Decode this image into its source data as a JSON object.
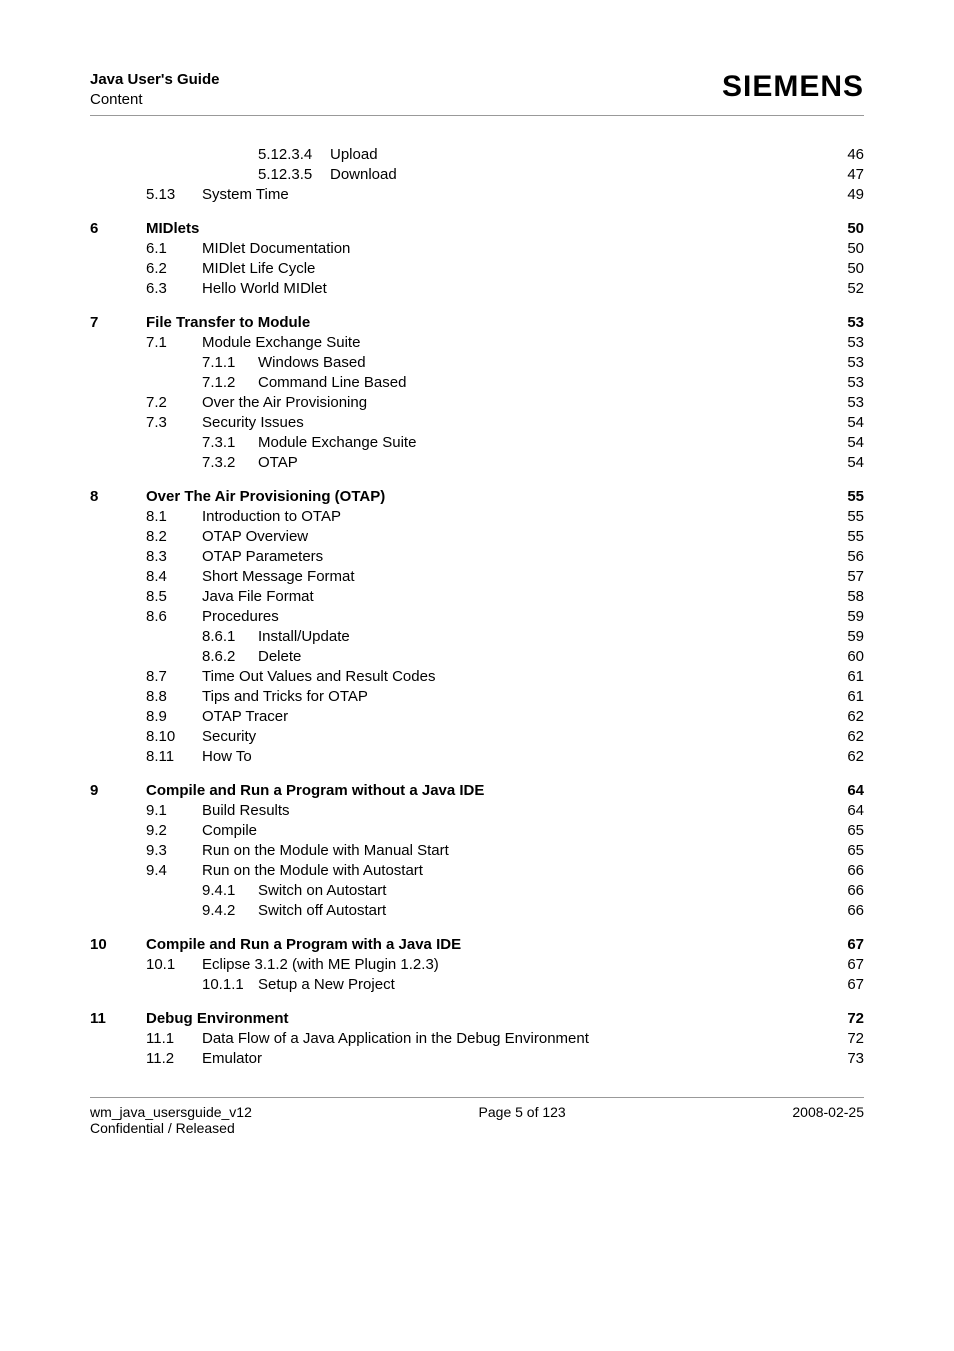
{
  "header": {
    "title": "Java User's Guide",
    "subtitle": "Content",
    "brand": "SIEMENS"
  },
  "footer": {
    "left1": "wm_java_usersguide_v12",
    "left2": "Confidential / Released",
    "center": "Page 5 of 123",
    "right": "2008-02-25"
  },
  "toc": [
    {
      "level": 3,
      "num": "5.12.3.4",
      "title": "Upload",
      "page": "46",
      "bold": false
    },
    {
      "level": 3,
      "num": "5.12.3.5",
      "title": "Download",
      "page": "47",
      "bold": false
    },
    {
      "level": 1,
      "num": "5.13",
      "title": "System Time",
      "page": "49",
      "bold": false
    },
    {
      "gap": true
    },
    {
      "level": 0,
      "num": "6",
      "title": "MIDlets",
      "page": "50",
      "bold": true
    },
    {
      "level": 1,
      "num": "6.1",
      "title": "MIDlet Documentation",
      "page": "50",
      "bold": false
    },
    {
      "level": 1,
      "num": "6.2",
      "title": "MIDlet Life Cycle",
      "page": "50",
      "bold": false
    },
    {
      "level": 1,
      "num": "6.3",
      "title": "Hello World MIDlet",
      "page": "52",
      "bold": false
    },
    {
      "gap": true
    },
    {
      "level": 0,
      "num": "7",
      "title": "File Transfer to Module",
      "page": "53",
      "bold": true
    },
    {
      "level": 1,
      "num": "7.1",
      "title": "Module Exchange Suite",
      "page": "53",
      "bold": false
    },
    {
      "level": 2,
      "num": "7.1.1",
      "title": "Windows Based",
      "page": "53",
      "bold": false
    },
    {
      "level": 2,
      "num": "7.1.2",
      "title": "Command Line Based",
      "page": "53",
      "bold": false
    },
    {
      "level": 1,
      "num": "7.2",
      "title": "Over the Air Provisioning",
      "page": "53",
      "bold": false
    },
    {
      "level": 1,
      "num": "7.3",
      "title": "Security Issues",
      "page": "54",
      "bold": false
    },
    {
      "level": 2,
      "num": "7.3.1",
      "title": "Module Exchange Suite",
      "page": "54",
      "bold": false
    },
    {
      "level": 2,
      "num": "7.3.2",
      "title": "OTAP",
      "page": "54",
      "bold": false
    },
    {
      "gap": true
    },
    {
      "level": 0,
      "num": "8",
      "title": "Over The Air Provisioning (OTAP)",
      "page": "55",
      "bold": true
    },
    {
      "level": 1,
      "num": "8.1",
      "title": "Introduction to OTAP",
      "page": "55",
      "bold": false
    },
    {
      "level": 1,
      "num": "8.2",
      "title": "OTAP Overview",
      "page": "55",
      "bold": false
    },
    {
      "level": 1,
      "num": "8.3",
      "title": "OTAP Parameters",
      "page": "56",
      "bold": false
    },
    {
      "level": 1,
      "num": "8.4",
      "title": "Short Message Format",
      "page": "57",
      "bold": false
    },
    {
      "level": 1,
      "num": "8.5",
      "title": "Java File Format",
      "page": "58",
      "bold": false
    },
    {
      "level": 1,
      "num": "8.6",
      "title": "Procedures",
      "page": "59",
      "bold": false
    },
    {
      "level": 2,
      "num": "8.6.1",
      "title": "Install/Update",
      "page": "59",
      "bold": false
    },
    {
      "level": 2,
      "num": "8.6.2",
      "title": "Delete",
      "page": "60",
      "bold": false
    },
    {
      "level": 1,
      "num": "8.7",
      "title": "Time Out Values and Result Codes",
      "page": "61",
      "bold": false
    },
    {
      "level": 1,
      "num": "8.8",
      "title": "Tips and Tricks for OTAP",
      "page": "61",
      "bold": false
    },
    {
      "level": 1,
      "num": "8.9",
      "title": "OTAP Tracer",
      "page": "62",
      "bold": false
    },
    {
      "level": 1,
      "num": "8.10",
      "title": "Security",
      "page": "62",
      "bold": false
    },
    {
      "level": 1,
      "num": "8.11",
      "title": "How To",
      "page": "62",
      "bold": false
    },
    {
      "gap": true
    },
    {
      "level": 0,
      "num": "9",
      "title": "Compile and Run a Program without a Java IDE",
      "page": "64",
      "bold": true
    },
    {
      "level": 1,
      "num": "9.1",
      "title": "Build Results",
      "page": "64",
      "bold": false
    },
    {
      "level": 1,
      "num": "9.2",
      "title": "Compile",
      "page": "65",
      "bold": false
    },
    {
      "level": 1,
      "num": "9.3",
      "title": "Run on the Module with Manual Start",
      "page": "65",
      "bold": false
    },
    {
      "level": 1,
      "num": "9.4",
      "title": "Run on the Module with Autostart",
      "page": "66",
      "bold": false
    },
    {
      "level": 2,
      "num": "9.4.1",
      "title": "Switch on Autostart",
      "page": "66",
      "bold": false
    },
    {
      "level": 2,
      "num": "9.4.2",
      "title": "Switch off Autostart",
      "page": "66",
      "bold": false
    },
    {
      "gap": true
    },
    {
      "level": 0,
      "num": "10",
      "title": "Compile and Run a Program with a Java IDE",
      "page": "67",
      "bold": true
    },
    {
      "level": 1,
      "num": "10.1",
      "title": "Eclipse 3.1.2 (with ME Plugin 1.2.3)",
      "page": "67",
      "bold": false
    },
    {
      "level": 2,
      "num": "10.1.1",
      "title": "Setup a New Project",
      "page": "67",
      "bold": false
    },
    {
      "gap": true
    },
    {
      "level": 0,
      "num": "11",
      "title": "Debug Environment",
      "page": "72",
      "bold": true
    },
    {
      "level": 1,
      "num": "11.1",
      "title": "Data Flow of a Java Application in the Debug Environment",
      "page": "72",
      "bold": false
    },
    {
      "level": 1,
      "num": "11.2",
      "title": "Emulator",
      "page": "73",
      "bold": false
    }
  ]
}
